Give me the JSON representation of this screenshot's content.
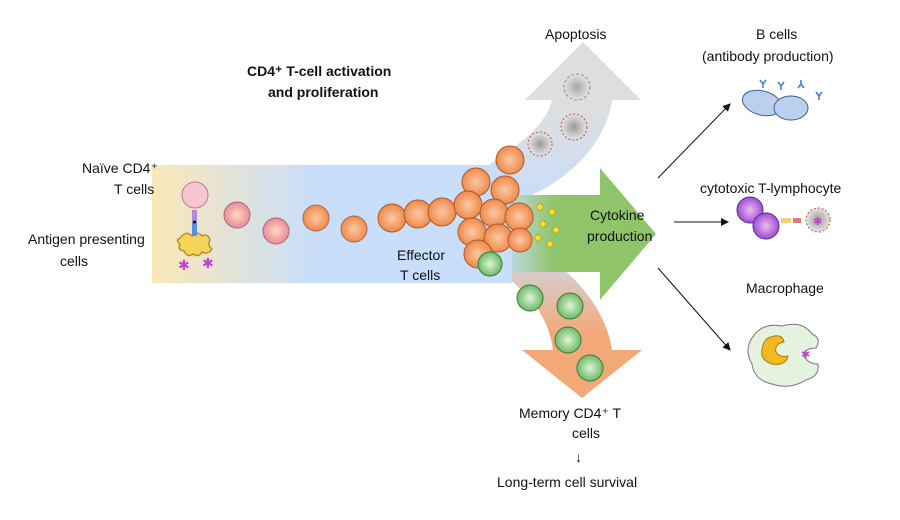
{
  "title": {
    "line1": "CD4⁺ T-cell activation",
    "line2": "and proliferation"
  },
  "labels": {
    "naive_line1": "Naïve CD4⁺",
    "naive_line2": "T cells",
    "apc_line1": "Antigen presenting",
    "apc_line2": "cells",
    "effector_line1": "Effector",
    "effector_line2": "T cells",
    "apoptosis": "Apoptosis",
    "cytokine_line1": "Cytokine",
    "cytokine_line2": "production",
    "memory_line1": "Memory CD4⁺ T",
    "memory_line2": "cells",
    "down_arrow": "↓",
    "survival": "Long-term cell survival",
    "bcells_line1": "B cells",
    "bcells_line2": "(antibody production)",
    "ctl": "cytotoxic T-lymphocyte",
    "macrophage": "Macrophage"
  },
  "colors": {
    "band_start": "#fbe7b8",
    "band_end": "#c9defa",
    "apoptosis_arrow": "#d9d9d9",
    "cytokine_arrow": "#8fc46a",
    "memory_arrow": "#f3a878",
    "effector_cell": "#f08a4b",
    "memory_cell": "#7fc27a",
    "naive_cell": "#f2b5c4",
    "b_cell": "#b8ccec",
    "ctl_cell": "#a05ad8",
    "macrophage": "#e6f2e0"
  }
}
